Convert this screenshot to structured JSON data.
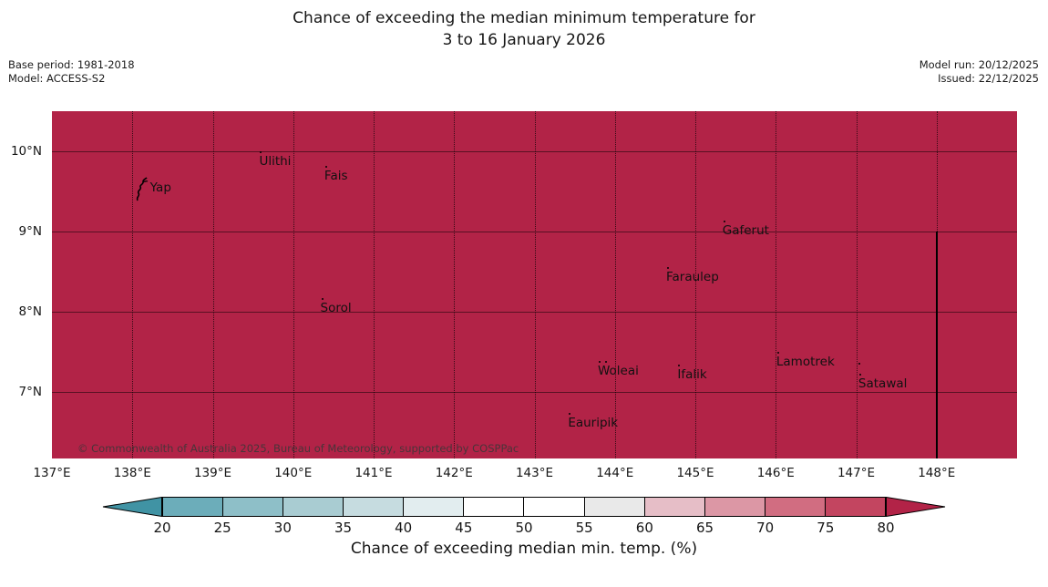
{
  "title": {
    "line1": "Chance of exceeding the median minimum temperature for",
    "line2": "3 to 16 January 2026"
  },
  "meta_left": {
    "base_period": "Base period: 1981-2018",
    "model": "Model: ACCESS-S2"
  },
  "meta_right": {
    "model_run": "Model run: 20/12/2025",
    "issued": "Issued: 22/12/2025"
  },
  "map": {
    "fill_color": "#b22347",
    "copyright": "© Commonwealth of Australia 2025, Bureau of Meteorology, supported by COSPPac",
    "lon_min": 137.0,
    "lon_max": 149.0,
    "lat_min": 6.17,
    "lat_max": 10.5,
    "x_ticks": [
      {
        "lon": 137,
        "label": "137°E"
      },
      {
        "lon": 138,
        "label": "138°E"
      },
      {
        "lon": 139,
        "label": "139°E"
      },
      {
        "lon": 140,
        "label": "140°E"
      },
      {
        "lon": 141,
        "label": "141°E"
      },
      {
        "lon": 142,
        "label": "142°E"
      },
      {
        "lon": 143,
        "label": "143°E"
      },
      {
        "lon": 144,
        "label": "144°E"
      },
      {
        "lon": 145,
        "label": "145°E"
      },
      {
        "lon": 146,
        "label": "146°E"
      },
      {
        "lon": 147,
        "label": "147°E"
      },
      {
        "lon": 148,
        "label": "148°E"
      }
    ],
    "y_ticks": [
      {
        "lat": 10,
        "label": "10°N"
      },
      {
        "lat": 9,
        "label": "9°N"
      },
      {
        "lat": 8,
        "label": "8°N"
      },
      {
        "lat": 7,
        "label": "7°N"
      }
    ],
    "grid_lons": [
      138,
      139,
      140,
      141,
      142,
      143,
      144,
      145,
      146,
      147,
      148
    ],
    "grid_lats": [
      7,
      8,
      9,
      10
    ],
    "boundary_line": {
      "lon": 148,
      "lat_from": 9.0,
      "lat_to": 6.17
    },
    "places": [
      {
        "name": "Yap",
        "lon": 138.22,
        "lat": 9.53,
        "marker": "island"
      },
      {
        "name": "Ulithi",
        "lon": 139.6,
        "lat": 9.99,
        "marker": "dot"
      },
      {
        "name": "Fais",
        "lon": 140.41,
        "lat": 9.81,
        "marker": "dot"
      },
      {
        "name": "Sorol",
        "lon": 140.36,
        "lat": 8.16,
        "marker": "dot"
      },
      {
        "name": "Gaferut",
        "lon": 145.36,
        "lat": 9.13,
        "marker": "dot"
      },
      {
        "name": "Faraulep",
        "lon": 144.66,
        "lat": 8.55,
        "marker": "dot"
      },
      {
        "name": "Woleai",
        "lon": 143.81,
        "lat": 7.37,
        "marker": "dot"
      },
      {
        "name": "Ifalik",
        "lon": 144.8,
        "lat": 7.33,
        "marker": "dot"
      },
      {
        "name": "Lamotrek",
        "lon": 146.03,
        "lat": 7.49,
        "marker": "dot"
      },
      {
        "name": "Satawal",
        "lon": 147.05,
        "lat": 7.21,
        "marker": "dot"
      },
      {
        "name": "Eauripik",
        "lon": 143.44,
        "lat": 6.73,
        "marker": "dot"
      }
    ],
    "extra_dots": [
      {
        "lon": 143.885,
        "lat": 7.37
      },
      {
        "lon": 147.04,
        "lat": 7.35
      }
    ]
  },
  "colorbar": {
    "label": "Chance of exceeding median min. temp. (%)",
    "ticks": [
      20,
      25,
      30,
      35,
      40,
      45,
      50,
      55,
      60,
      65,
      70,
      75,
      80
    ],
    "cell_colors": [
      "#6cadba",
      "#8ebfc8",
      "#a9ccd2",
      "#c6dce0",
      "#e2edef",
      "#ffffff",
      "#ffffff",
      "#e9e9e9",
      "#e6bec7",
      "#dc97a5",
      "#d16d81",
      "#c34560"
    ],
    "under_color": "#4093a4",
    "over_color": "#b22347"
  }
}
